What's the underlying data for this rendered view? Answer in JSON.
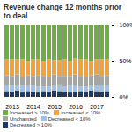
{
  "chart_data": {
    "type": "bar",
    "stacked": true,
    "title": "Revenue change 12 months prior to deal",
    "categories": [
      null,
      "2013",
      null,
      null,
      null,
      "2014",
      null,
      null,
      null,
      "2015",
      null,
      null,
      null,
      "2016",
      null,
      null,
      null,
      "2017",
      null,
      null
    ],
    "series": [
      {
        "name": "Decreased > 10%",
        "color": "#1f3864",
        "values": [
          8,
          7,
          9,
          6,
          8,
          7,
          6,
          8,
          7,
          9,
          8,
          7,
          6,
          7,
          8,
          7,
          9,
          8,
          7,
          8
        ]
      },
      {
        "name": "Decreased < 10%",
        "color": "#9dc3e6",
        "values": [
          7,
          8,
          6,
          9,
          7,
          8,
          8,
          6,
          7,
          6,
          8,
          7,
          9,
          8,
          6,
          7,
          6,
          7,
          8,
          7
        ]
      },
      {
        "name": "Unchanged",
        "color": "#a5a5a5",
        "values": [
          15,
          14,
          16,
          13,
          15,
          14,
          16,
          15,
          14,
          16,
          13,
          15,
          14,
          16,
          15,
          14,
          15,
          16,
          14,
          15
        ]
      },
      {
        "name": "Increased < 10%",
        "color": "#f4a13a",
        "values": [
          22,
          23,
          21,
          24,
          20,
          23,
          22,
          21,
          24,
          20,
          22,
          23,
          21,
          22,
          23,
          24,
          20,
          21,
          23,
          22
        ]
      },
      {
        "name": "Increased > 10%",
        "color": "#70ad47",
        "values": [
          48,
          48,
          48,
          48,
          50,
          48,
          48,
          50,
          48,
          49,
          49,
          48,
          50,
          47,
          48,
          48,
          50,
          48,
          48,
          48
        ]
      }
    ],
    "ylim": [
      0,
      100
    ],
    "yticks": [
      {
        "value": 0,
        "label": "0%"
      },
      {
        "value": 50,
        "label": "50%"
      },
      {
        "value": 100,
        "label": "100%"
      }
    ],
    "legend": "bottom"
  }
}
